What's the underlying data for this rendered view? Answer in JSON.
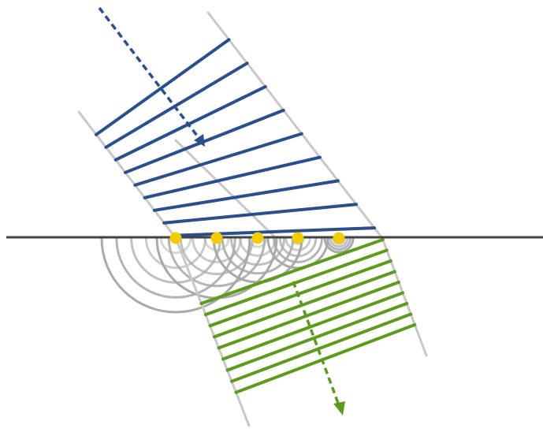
{
  "diagram": {
    "subject": "huygens-refraction",
    "colors": {
      "background": "#ffffff",
      "interface_line": "#3f4446",
      "beam_edges": "#c8c8c6",
      "incident_wavefronts": "#2a4f8c",
      "refracted_wavefronts": "#5d9a1e",
      "wavelets": "#a9aaa8",
      "secondary_sources": "#f2cc00"
    },
    "incident_wavefront_count": 9,
    "refracted_wavefront_count": 9,
    "secondary_source_count": 5,
    "wavelet_rings_per_source": 5
  }
}
